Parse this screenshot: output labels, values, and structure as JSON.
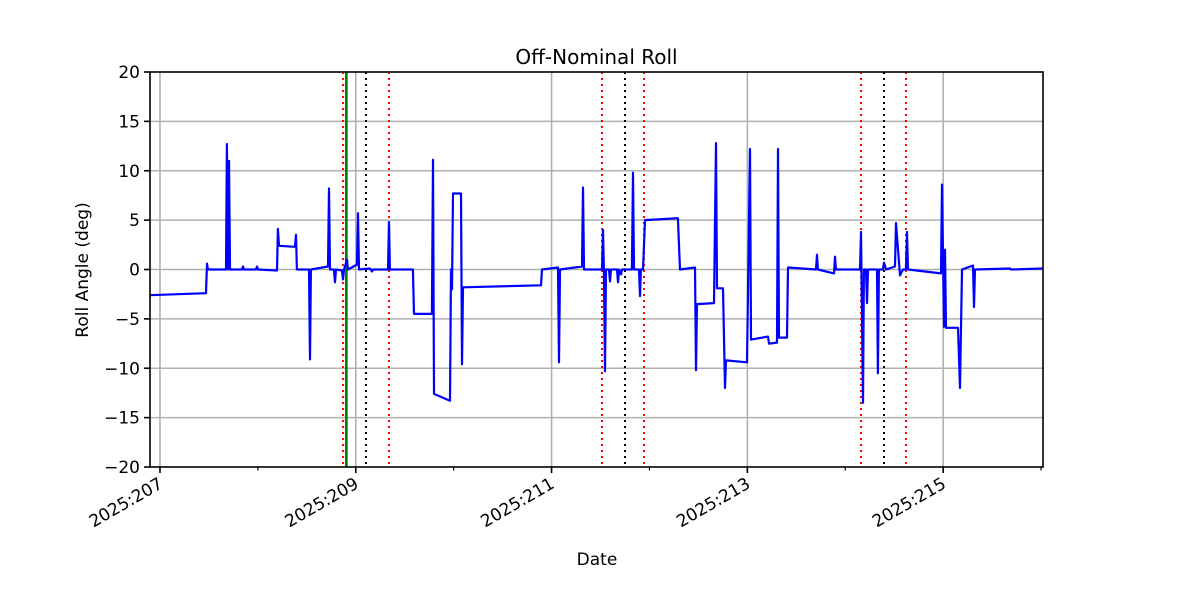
{
  "chart_data": {
    "type": "line",
    "title": "Off-Nominal Roll",
    "xlabel": "Date",
    "ylabel": "Roll Angle (deg)",
    "xlim": [
      206.898,
      216.02
    ],
    "ylim": [
      -20,
      20
    ],
    "grid": true,
    "x_major_ticks": [
      207,
      209,
      211,
      213,
      215
    ],
    "x_tick_labels": [
      "2025:207",
      "2025:209",
      "2025:211",
      "2025:213",
      "2025:215"
    ],
    "x_minor_ticks": [
      208,
      210,
      212,
      214,
      216
    ],
    "y_ticks": [
      -20,
      -15,
      -10,
      -5,
      0,
      5,
      10,
      15,
      20
    ],
    "y_tick_labels": [
      "−20",
      "−15",
      "−10",
      "−5",
      "0",
      "5",
      "10",
      "15",
      "20"
    ],
    "series": [
      {
        "name": "roll",
        "color": "#0000ff",
        "points": [
          [
            206.898,
            -2.6
          ],
          [
            207.47,
            -2.4
          ],
          [
            207.48,
            0.6
          ],
          [
            207.49,
            0
          ],
          [
            207.674,
            0
          ],
          [
            207.684,
            12.7
          ],
          [
            207.695,
            0
          ],
          [
            207.705,
            11
          ],
          [
            207.715,
            0
          ],
          [
            207.838,
            0
          ],
          [
            207.848,
            0.3
          ],
          [
            207.858,
            0
          ],
          [
            207.981,
            0
          ],
          [
            207.991,
            0.3
          ],
          [
            208.001,
            0
          ],
          [
            208.195,
            -0.1
          ],
          [
            208.205,
            4.1
          ],
          [
            208.216,
            2.4
          ],
          [
            208.379,
            2.3
          ],
          [
            208.389,
            3.5
          ],
          [
            208.399,
            0
          ],
          [
            208.522,
            0
          ],
          [
            208.532,
            -9.1
          ],
          [
            208.542,
            0
          ],
          [
            208.716,
            0.3
          ],
          [
            208.726,
            8.2
          ],
          [
            208.737,
            0
          ],
          [
            208.777,
            0
          ],
          [
            208.788,
            -1.3
          ],
          [
            208.798,
            0
          ],
          [
            208.859,
            -0.1
          ],
          [
            208.869,
            -1
          ],
          [
            208.88,
            0
          ],
          [
            208.91,
            1
          ],
          [
            208.92,
            0
          ],
          [
            209.012,
            0.5
          ],
          [
            209.023,
            5.7
          ],
          [
            209.033,
            0
          ],
          [
            209.145,
            0.1
          ],
          [
            209.166,
            -0.2
          ],
          [
            209.176,
            0
          ],
          [
            209.329,
            0
          ],
          [
            209.339,
            4.8
          ],
          [
            209.349,
            0
          ],
          [
            209.584,
            0
          ],
          [
            209.595,
            -4.5
          ],
          [
            209.778,
            -4.5
          ],
          [
            209.789,
            11.1
          ],
          [
            209.799,
            -12.6
          ],
          [
            209.962,
            -13.3
          ],
          [
            209.973,
            0
          ],
          [
            209.983,
            -2
          ],
          [
            209.993,
            7.7
          ],
          [
            210.075,
            7.7
          ],
          [
            210.085,
            -9.6
          ],
          [
            210.095,
            -1.8
          ],
          [
            210.892,
            -1.6
          ],
          [
            210.902,
            0
          ],
          [
            211.066,
            0.2
          ],
          [
            211.076,
            -9.4
          ],
          [
            211.086,
            0
          ],
          [
            211.311,
            0.3
          ],
          [
            211.321,
            8.3
          ],
          [
            211.331,
            0
          ],
          [
            211.515,
            0
          ],
          [
            211.525,
            4
          ],
          [
            211.535,
            0
          ],
          [
            211.546,
            -10.3
          ],
          [
            211.556,
            0
          ],
          [
            211.587,
            0
          ],
          [
            211.597,
            -1.2
          ],
          [
            211.607,
            0
          ],
          [
            211.668,
            0
          ],
          [
            211.679,
            -1.3
          ],
          [
            211.689,
            0
          ],
          [
            211.709,
            -0.5
          ],
          [
            211.719,
            0
          ],
          [
            211.821,
            0
          ],
          [
            211.832,
            9.8
          ],
          [
            211.842,
            0
          ],
          [
            211.893,
            0
          ],
          [
            211.903,
            -2.7
          ],
          [
            211.913,
            0
          ],
          [
            211.934,
            0
          ],
          [
            211.954,
            5
          ],
          [
            212.291,
            5.2
          ],
          [
            212.312,
            0
          ],
          [
            212.465,
            0.2
          ],
          [
            212.475,
            -10.2
          ],
          [
            212.486,
            -3.5
          ],
          [
            212.659,
            -3.4
          ],
          [
            212.68,
            12.8
          ],
          [
            212.69,
            -1.9
          ],
          [
            212.751,
            -1.9
          ],
          [
            212.772,
            -12
          ],
          [
            212.782,
            -9.2
          ],
          [
            212.996,
            -9.4
          ],
          [
            213.027,
            12.2
          ],
          [
            213.037,
            -7.1
          ],
          [
            213.211,
            -6.8
          ],
          [
            213.221,
            -7.5
          ],
          [
            213.303,
            -7.4
          ],
          [
            213.313,
            12.2
          ],
          [
            213.323,
            -6.9
          ],
          [
            213.405,
            -6.9
          ],
          [
            213.415,
            0.2
          ],
          [
            213.701,
            0
          ],
          [
            213.711,
            1.5
          ],
          [
            213.721,
            0
          ],
          [
            213.885,
            -0.4
          ],
          [
            213.895,
            1.3
          ],
          [
            213.905,
            0
          ],
          [
            214.151,
            0
          ],
          [
            214.161,
            3.8
          ],
          [
            214.181,
            -13.5
          ],
          [
            214.191,
            0
          ],
          [
            214.212,
            0
          ],
          [
            214.222,
            -3.4
          ],
          [
            214.232,
            0
          ],
          [
            214.324,
            0
          ],
          [
            214.334,
            -10.5
          ],
          [
            214.344,
            0
          ],
          [
            214.385,
            0
          ],
          [
            214.396,
            0.7
          ],
          [
            214.416,
            0
          ],
          [
            214.508,
            0.3
          ],
          [
            214.518,
            4.7
          ],
          [
            214.559,
            -0.6
          ],
          [
            214.59,
            0
          ],
          [
            214.62,
            0
          ],
          [
            214.631,
            3.8
          ],
          [
            214.641,
            0
          ],
          [
            214.978,
            -0.4
          ],
          [
            214.988,
            8.6
          ],
          [
            215.009,
            -5.8
          ],
          [
            215.019,
            2
          ],
          [
            215.029,
            -5.9
          ],
          [
            215.152,
            -5.9
          ],
          [
            215.172,
            -12
          ],
          [
            215.193,
            0
          ],
          [
            215.305,
            0.4
          ],
          [
            215.315,
            -3.8
          ],
          [
            215.325,
            0
          ],
          [
            215.683,
            0.1
          ],
          [
            215.693,
            0
          ],
          [
            216.02,
            0.1
          ]
        ]
      }
    ],
    "vertical_lines": [
      {
        "x": 208.869,
        "color": "#ff0000",
        "style": "dotted"
      },
      {
        "x": 208.9,
        "color": "#ff0000",
        "style": "solid"
      },
      {
        "x": 208.905,
        "color": "#008000",
        "style": "solid"
      },
      {
        "x": 209.104,
        "color": "#000000",
        "style": "dotted"
      },
      {
        "x": 209.339,
        "color": "#ff0000",
        "style": "dotted"
      },
      {
        "x": 211.515,
        "color": "#ff0000",
        "style": "dotted"
      },
      {
        "x": 211.75,
        "color": "#000000",
        "style": "dotted"
      },
      {
        "x": 211.944,
        "color": "#ff0000",
        "style": "dotted"
      },
      {
        "x": 214.161,
        "color": "#ff0000",
        "style": "dotted"
      },
      {
        "x": 214.396,
        "color": "#000000",
        "style": "dotted"
      },
      {
        "x": 214.62,
        "color": "#ff0000",
        "style": "dotted"
      }
    ]
  }
}
